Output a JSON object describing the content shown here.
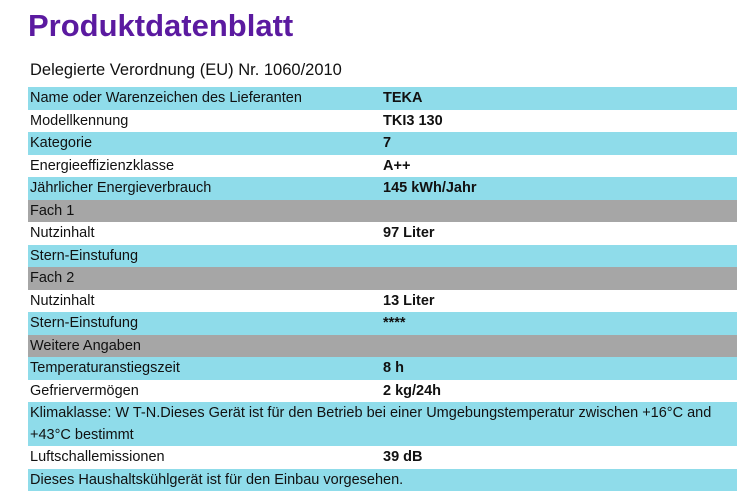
{
  "header": {
    "title": "Produktdatenblatt",
    "subtitle": "Delegierte Verordnung (EU) Nr. 1060/2010"
  },
  "table": {
    "rows": [
      [
        "Name oder Warenzeichen des Lieferanten",
        "TEKA"
      ],
      [
        "Modellkennung",
        "TKI3 130"
      ],
      [
        "Kategorie",
        "7"
      ],
      [
        "Energieeffizienzklasse",
        "A++"
      ],
      [
        "Jährlicher Energieverbrauch",
        "145 kWh/Jahr"
      ],
      [
        "Fach 1"
      ],
      [
        "Nutzinhalt",
        "97 Liter"
      ],
      [
        "Stern-Einstufung"
      ],
      [
        "Fach 2"
      ],
      [
        "Nutzinhalt",
        "13 Liter"
      ],
      [
        "Stern-Einstufung",
        "****"
      ],
      [
        "Weitere Angaben"
      ],
      [
        "Temperaturanstiegszeit",
        "8 h"
      ],
      [
        "Gefriervermögen",
        "2 kg/24h"
      ],
      [
        "Klimaklasse: W T-N.Dieses Gerät ist für den Betrieb bei einer Umgebungstemperatur zwischen +16°C and +43°C bestimmt"
      ],
      [
        "Luftschallemissionen",
        "39 dB"
      ],
      [
        "Dieses Haushaltskühlgerät ist für den Einbau vorgesehen."
      ]
    ]
  }
}
